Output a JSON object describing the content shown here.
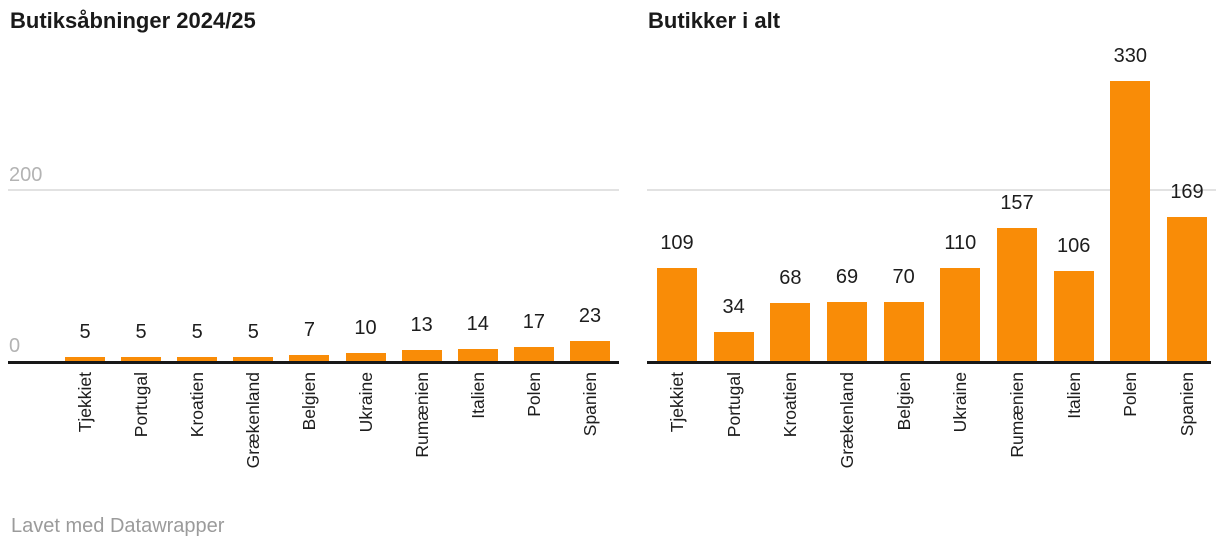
{
  "page": {
    "background": "#ffffff"
  },
  "colors": {
    "bar": "#F98C07",
    "axis_line": "#181818",
    "gridline": "#E2E2E2",
    "tick_label": "#B3B3B3",
    "value_label": "#1D1D1D",
    "category_label": "#1D1D1D",
    "title": "#1A1A1A",
    "footer_text": "#9B9B9B"
  },
  "footer": {
    "credit": "Lavet med Datawrapper"
  },
  "chart_data": [
    {
      "type": "bar",
      "title": "Butiksåbninger 2024/25",
      "categories": [
        "Tjekkiet",
        "Portugal",
        "Kroatien",
        "Grækenland",
        "Belgien",
        "Ukraine",
        "Rumænien",
        "Italien",
        "Polen",
        "Spanien"
      ],
      "values": [
        5,
        5,
        5,
        5,
        7,
        10,
        13,
        14,
        17,
        23
      ],
      "data_labels_shown": true,
      "xlabel": "",
      "ylabel": "",
      "ylim": [
        0,
        430
      ],
      "yticks": [
        {
          "value": 200,
          "label": "200"
        },
        {
          "value": 0,
          "label": "0"
        }
      ],
      "grid": "single horizontal gridline at 200",
      "legend": "none",
      "bar_color": "#F98C07",
      "category_label_rotation": -90
    },
    {
      "type": "bar",
      "title": "Butikker i alt",
      "categories": [
        "Tjekkiet",
        "Portugal",
        "Kroatien",
        "Grækenland",
        "Belgien",
        "Ukraine",
        "Rumænien",
        "Italien",
        "Polen",
        "Spanien"
      ],
      "values": [
        109,
        34,
        68,
        69,
        70,
        110,
        157,
        106,
        330,
        169
      ],
      "data_labels_shown": true,
      "xlabel": "",
      "ylabel": "",
      "ylim": [
        0,
        430
      ],
      "yticks": [
        {
          "value": 200,
          "label": ""
        }
      ],
      "grid": "single horizontal gridline at 200",
      "legend": "none",
      "bar_color": "#F98C07",
      "category_label_rotation": -90
    }
  ]
}
